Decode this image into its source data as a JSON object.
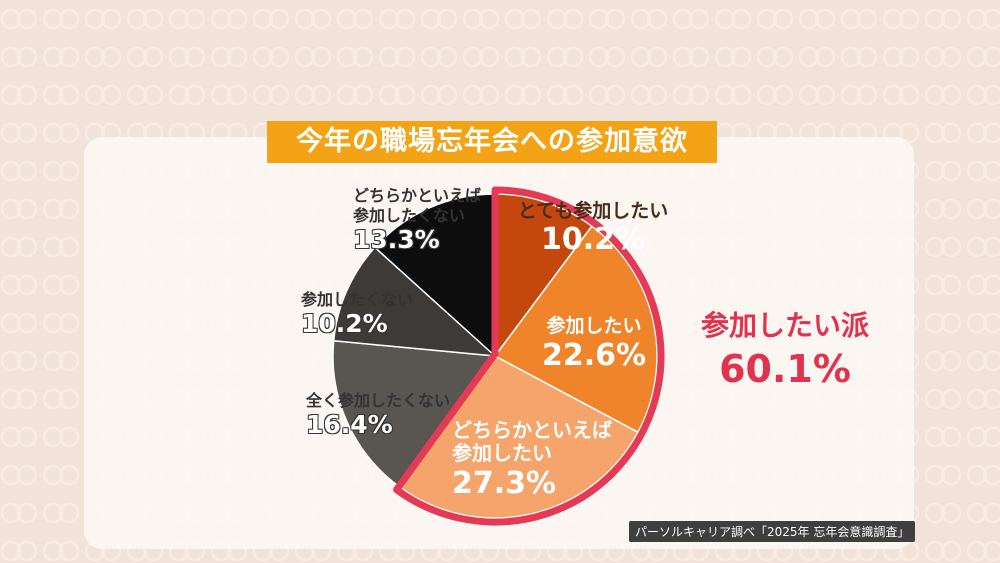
{
  "header": {
    "title": "今年の職場忘年会への参加意欲"
  },
  "chart_data": {
    "type": "pie",
    "title": "今年の職場忘年会への参加意欲",
    "unit": "%",
    "slices": [
      {
        "name": "とても参加したい",
        "value": 10.2,
        "value_label": "10.2%",
        "color": "#c4480e"
      },
      {
        "name": "参加したい",
        "value": 22.6,
        "value_label": "22.6%",
        "color": "#f0842a"
      },
      {
        "name": "どちらかといえば参加したい",
        "value": 27.3,
        "value_label": "27.3%",
        "color": "#f5a56b"
      },
      {
        "name": "全く参加したくない",
        "value": 16.4,
        "value_label": "16.4%",
        "color": "#595551"
      },
      {
        "name": "参加したくない",
        "value": 10.2,
        "value_label": "10.2%",
        "color": "#3d3a37"
      },
      {
        "name": "どちらかといえば参加したくない",
        "value": 13.3,
        "value_label": "13.3%",
        "color": "#0e0d0d"
      }
    ],
    "group": {
      "name": "参加したい派",
      "value": 60.1,
      "value_label": "60.1%",
      "highlight_color": "#e43a55"
    },
    "label_lines": {
      "s1": [
        "とても参加したい"
      ],
      "s2": [
        "参加したい"
      ],
      "s3": [
        "どちらかといえば",
        "参加したい"
      ],
      "s4": [
        "全く参加したくない"
      ],
      "s5": [
        "参加したくない"
      ],
      "s6": [
        "どちらかといえば",
        "参加したくない"
      ]
    },
    "source": "パーソルキャリア調べ「2025年 忘年会意識調査」"
  }
}
